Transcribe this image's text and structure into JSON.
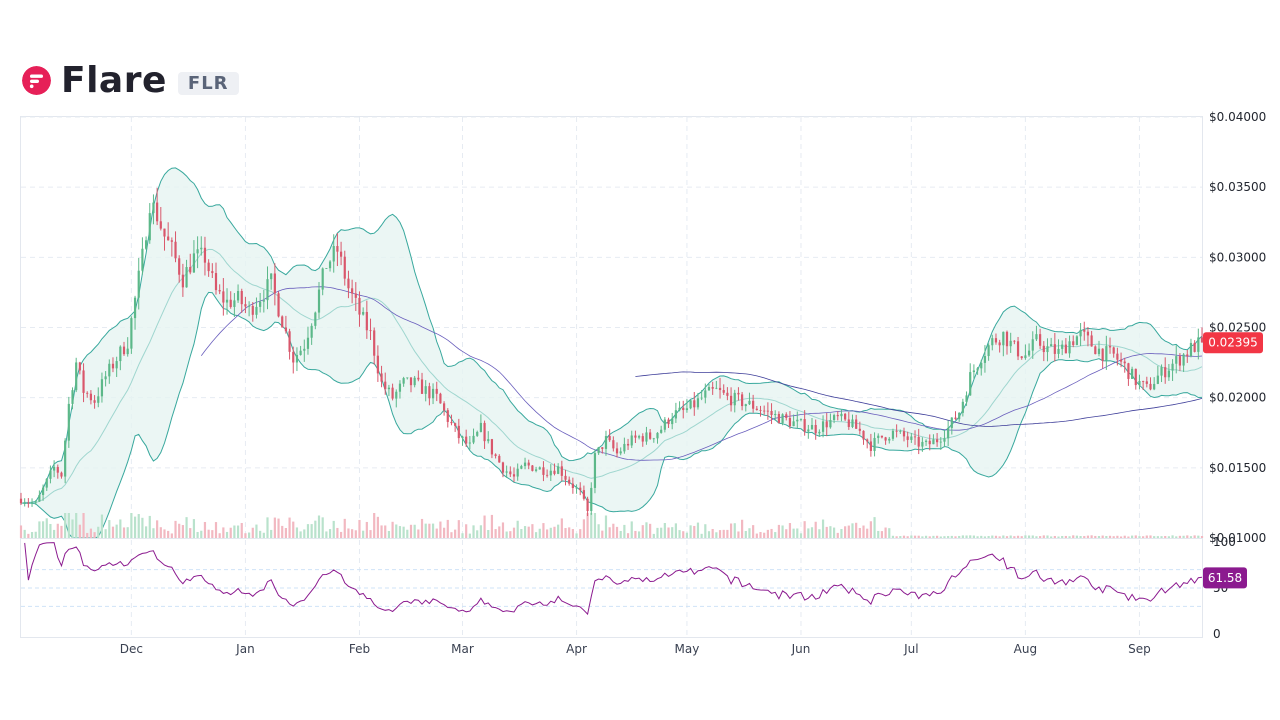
{
  "header": {
    "name": "Flare",
    "symbol": "FLR",
    "logo_icon": "flare-logo-icon",
    "logo_color": "#e62058"
  },
  "chart_data": {
    "type": "candlestick",
    "title": "",
    "price_axis": {
      "ticks": [
        "$0.04000",
        "$0.03500",
        "$0.03000",
        "$0.02500",
        "$0.02000",
        "$0.01500",
        "$0.01000"
      ],
      "ylim": [
        0.01,
        0.04
      ]
    },
    "x_ticks": [
      "Dec",
      "Jan",
      "Feb",
      "Mar",
      "Apr",
      "May",
      "Jun",
      "Jul",
      "Aug",
      "Sep"
    ],
    "x_range": [
      "2022-11-01",
      "2023-09-18"
    ],
    "last_price": "0.02395",
    "close_series": [
      [
        "2022-11-01",
        0.0128
      ],
      [
        "2022-11-05",
        0.0124
      ],
      [
        "2022-11-08",
        0.014
      ],
      [
        "2022-11-10",
        0.015
      ],
      [
        "2022-11-12",
        0.0145
      ],
      [
        "2022-11-14",
        0.0195
      ],
      [
        "2022-11-16",
        0.0225
      ],
      [
        "2022-11-18",
        0.0205
      ],
      [
        "2022-11-21",
        0.0198
      ],
      [
        "2022-11-24",
        0.0215
      ],
      [
        "2022-11-27",
        0.0228
      ],
      [
        "2022-11-30",
        0.024
      ],
      [
        "2022-12-02",
        0.027
      ],
      [
        "2022-12-04",
        0.03
      ],
      [
        "2022-12-06",
        0.034
      ],
      [
        "2022-12-08",
        0.033
      ],
      [
        "2022-12-10",
        0.0315
      ],
      [
        "2022-12-12",
        0.0305
      ],
      [
        "2022-12-15",
        0.0285
      ],
      [
        "2022-12-18",
        0.03
      ],
      [
        "2022-12-21",
        0.03
      ],
      [
        "2022-12-24",
        0.0275
      ],
      [
        "2022-12-27",
        0.0268
      ],
      [
        "2022-12-30",
        0.027
      ],
      [
        "2023-01-02",
        0.0262
      ],
      [
        "2023-01-05",
        0.0272
      ],
      [
        "2023-01-08",
        0.0282
      ],
      [
        "2023-01-11",
        0.0255
      ],
      [
        "2023-01-14",
        0.0228
      ],
      [
        "2023-01-17",
        0.0238
      ],
      [
        "2023-01-20",
        0.0265
      ],
      [
        "2023-01-23",
        0.0295
      ],
      [
        "2023-01-26",
        0.0305
      ],
      [
        "2023-01-29",
        0.0278
      ],
      [
        "2023-02-01",
        0.026
      ],
      [
        "2023-02-04",
        0.0245
      ],
      [
        "2023-02-07",
        0.021
      ],
      [
        "2023-02-10",
        0.02
      ],
      [
        "2023-02-13",
        0.021
      ],
      [
        "2023-02-16",
        0.021
      ],
      [
        "2023-02-19",
        0.0205
      ],
      [
        "2023-02-22",
        0.02
      ],
      [
        "2023-02-25",
        0.0185
      ],
      [
        "2023-02-28",
        0.0172
      ],
      [
        "2023-03-03",
        0.0165
      ],
      [
        "2023-03-06",
        0.0178
      ],
      [
        "2023-03-09",
        0.0162
      ],
      [
        "2023-03-12",
        0.015
      ],
      [
        "2023-03-15",
        0.0143
      ],
      [
        "2023-03-18",
        0.0152
      ],
      [
        "2023-03-21",
        0.015
      ],
      [
        "2023-03-24",
        0.0148
      ],
      [
        "2023-03-27",
        0.015
      ],
      [
        "2023-03-30",
        0.014
      ],
      [
        "2023-04-02",
        0.0132
      ],
      [
        "2023-04-04",
        0.0118
      ],
      [
        "2023-04-06",
        0.0158
      ],
      [
        "2023-04-09",
        0.017
      ],
      [
        "2023-04-12",
        0.016
      ],
      [
        "2023-04-15",
        0.0168
      ],
      [
        "2023-04-18",
        0.0172
      ],
      [
        "2023-04-21",
        0.0172
      ],
      [
        "2023-04-24",
        0.0178
      ],
      [
        "2023-04-27",
        0.0188
      ],
      [
        "2023-04-30",
        0.019
      ],
      [
        "2023-05-03",
        0.0195
      ],
      [
        "2023-05-06",
        0.0202
      ],
      [
        "2023-05-09",
        0.0205
      ],
      [
        "2023-05-12",
        0.02
      ],
      [
        "2023-05-15",
        0.0198
      ],
      [
        "2023-05-18",
        0.0195
      ],
      [
        "2023-05-21",
        0.0192
      ],
      [
        "2023-05-24",
        0.0188
      ],
      [
        "2023-05-27",
        0.0185
      ],
      [
        "2023-05-30",
        0.0182
      ],
      [
        "2023-06-02",
        0.018
      ],
      [
        "2023-06-05",
        0.0178
      ],
      [
        "2023-06-08",
        0.0182
      ],
      [
        "2023-06-11",
        0.0185
      ],
      [
        "2023-06-14",
        0.0182
      ],
      [
        "2023-06-17",
        0.0176
      ],
      [
        "2023-06-20",
        0.0166
      ],
      [
        "2023-06-23",
        0.0172
      ],
      [
        "2023-06-26",
        0.0175
      ],
      [
        "2023-06-29",
        0.0172
      ],
      [
        "2023-07-02",
        0.0168
      ],
      [
        "2023-07-05",
        0.0166
      ],
      [
        "2023-07-08",
        0.017
      ],
      [
        "2023-07-11",
        0.0178
      ],
      [
        "2023-07-14",
        0.019
      ],
      [
        "2023-07-17",
        0.0215
      ],
      [
        "2023-07-20",
        0.023
      ],
      [
        "2023-07-23",
        0.024
      ],
      [
        "2023-07-26",
        0.0245
      ],
      [
        "2023-07-29",
        0.0235
      ],
      [
        "2023-08-01",
        0.023
      ],
      [
        "2023-08-04",
        0.024
      ],
      [
        "2023-08-07",
        0.0235
      ],
      [
        "2023-08-10",
        0.0232
      ],
      [
        "2023-08-13",
        0.024
      ],
      [
        "2023-08-16",
        0.0245
      ],
      [
        "2023-08-19",
        0.0238
      ],
      [
        "2023-08-22",
        0.0232
      ],
      [
        "2023-08-25",
        0.023
      ],
      [
        "2023-08-28",
        0.0222
      ],
      [
        "2023-08-31",
        0.0212
      ],
      [
        "2023-09-03",
        0.0206
      ],
      [
        "2023-09-06",
        0.0215
      ],
      [
        "2023-09-09",
        0.0222
      ],
      [
        "2023-09-12",
        0.0228
      ],
      [
        "2023-09-15",
        0.0235
      ],
      [
        "2023-09-18",
        0.02395
      ]
    ],
    "rsi": {
      "ticks": [
        "100",
        "50",
        "0"
      ],
      "levels": [
        70,
        50,
        30
      ],
      "last_value": "61.58"
    },
    "colors": {
      "up": "#5cb889",
      "down": "#d9576b",
      "band_line": "#38a89d",
      "band_fill": "#e6f4f1",
      "ma_line": "#6a5fbd",
      "rsi_line": "#8b1a8f",
      "price_tag": "#f23645",
      "rsi_tag": "#8b1a8f",
      "grid": "#e6ebf2"
    }
  }
}
